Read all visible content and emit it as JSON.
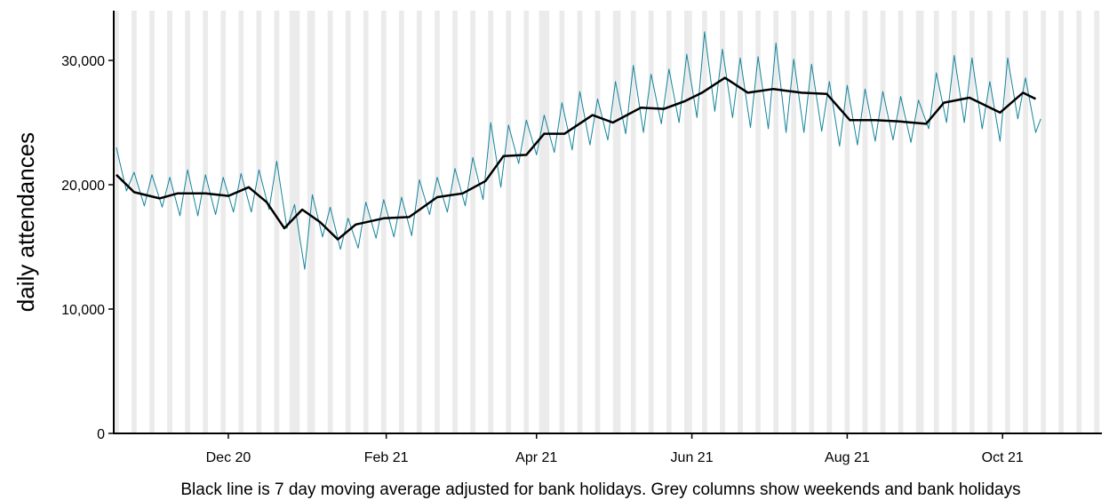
{
  "chart_data": {
    "type": "line",
    "y_label": "daily attendances",
    "caption": "Black line is 7 day moving average adjusted for bank holidays. Grey columns show weekends and bank holidays",
    "xlim": [
      -45,
      343
    ],
    "ylim": [
      0,
      34000
    ],
    "xticks": [
      {
        "value": 0,
        "label": "Dec 20"
      },
      {
        "value": 62,
        "label": "Feb 21"
      },
      {
        "value": 121,
        "label": "Apr 21"
      },
      {
        "value": 182,
        "label": "Jun 21"
      },
      {
        "value": 243,
        "label": "Aug 21"
      },
      {
        "value": 304,
        "label": "Oct 21"
      }
    ],
    "yticks": [
      0,
      {
        "value": 10000,
        "label": "10,000"
      },
      {
        "value": 20000,
        "label": "20,000"
      },
      {
        "value": 30000,
        "label": "30,000"
      }
    ],
    "shade_color": "#ebebeb",
    "weekend_starts": [
      -45,
      -38,
      -31,
      -24,
      -17,
      -10,
      -3,
      4,
      11,
      18,
      25,
      32,
      39,
      46,
      53,
      60,
      67,
      74,
      81,
      88,
      95,
      102,
      109,
      116,
      123,
      130,
      137,
      144,
      151,
      158,
      165,
      172,
      179,
      186,
      193,
      200,
      207,
      214,
      221,
      228,
      235,
      242,
      249,
      256,
      263,
      270,
      277,
      284,
      291,
      298,
      305,
      312,
      319,
      326,
      333,
      340
    ],
    "bank_holidays": [
      24,
      27,
      31,
      122,
      125,
      153,
      181,
      272
    ],
    "series": [
      {
        "color": "#14849c",
        "width": 1,
        "x": [
          -44,
          -40,
          -37,
          -33,
          -30,
          -26,
          -23,
          -19,
          -16,
          -12,
          -9,
          -5,
          -2,
          2,
          5,
          9,
          12,
          16,
          19,
          23,
          26,
          30,
          33,
          37,
          40,
          44,
          47,
          51,
          54,
          58,
          61,
          65,
          68,
          72,
          75,
          79,
          82,
          86,
          89,
          93,
          96,
          100,
          103,
          107,
          110,
          114,
          117,
          121,
          124,
          128,
          131,
          135,
          138,
          142,
          145,
          149,
          152,
          156,
          159,
          163,
          166,
          170,
          173,
          177,
          180,
          184,
          187,
          191,
          194,
          198,
          201,
          205,
          208,
          212,
          215,
          219,
          222,
          226,
          229,
          233,
          236,
          240,
          243,
          247,
          250,
          254,
          257,
          261,
          264,
          268,
          271,
          275,
          278,
          282,
          285,
          289,
          292,
          296,
          299,
          303,
          306,
          310,
          313,
          317,
          319
        ],
        "values": [
          23000,
          19500,
          21000,
          18300,
          20800,
          18200,
          20600,
          17500,
          21200,
          17500,
          20800,
          17600,
          20600,
          17800,
          20900,
          17800,
          21200,
          18000,
          21900,
          16500,
          18400,
          13200,
          19200,
          15800,
          18200,
          14800,
          17300,
          14900,
          18600,
          15700,
          18800,
          15800,
          19000,
          15900,
          20400,
          17600,
          20600,
          17800,
          21300,
          18300,
          22200,
          18800,
          25000,
          19800,
          24800,
          21700,
          25200,
          22400,
          25600,
          22600,
          26600,
          22800,
          27500,
          23200,
          26900,
          23600,
          28300,
          24100,
          29600,
          24200,
          28900,
          24900,
          29300,
          25000,
          30500,
          25400,
          32300,
          25900,
          30900,
          25400,
          30200,
          24600,
          30300,
          24500,
          31400,
          24200,
          30100,
          24200,
          29700,
          24300,
          28300,
          23100,
          28000,
          23200,
          27700,
          23500,
          27500,
          23600,
          27100,
          23400,
          26800,
          24500,
          29000,
          25000,
          30400,
          25000,
          30200,
          24500,
          28300,
          23500,
          30200,
          25300,
          28600,
          24200,
          25300
        ]
      },
      {
        "color": "#000000",
        "width": 2.5,
        "x": [
          -44,
          -37,
          -27,
          -20,
          -9,
          0,
          8,
          15,
          22,
          29,
          36,
          43,
          50,
          61,
          71,
          82,
          92,
          101,
          108,
          117,
          124,
          132,
          143,
          151,
          162,
          171,
          179,
          186,
          195,
          204,
          214,
          225,
          235,
          244,
          254,
          263,
          274,
          281,
          291,
          303,
          312,
          317
        ],
        "values": [
          20800,
          19400,
          18900,
          19300,
          19300,
          19100,
          19800,
          18600,
          16500,
          18000,
          17000,
          15600,
          16800,
          17300,
          17400,
          19000,
          19300,
          20300,
          22300,
          22400,
          24100,
          24100,
          25600,
          25000,
          26200,
          26100,
          26700,
          27400,
          28600,
          27400,
          27700,
          27400,
          27300,
          25200,
          25200,
          25100,
          24900,
          26600,
          27000,
          25800,
          27400,
          26900
        ]
      }
    ]
  }
}
